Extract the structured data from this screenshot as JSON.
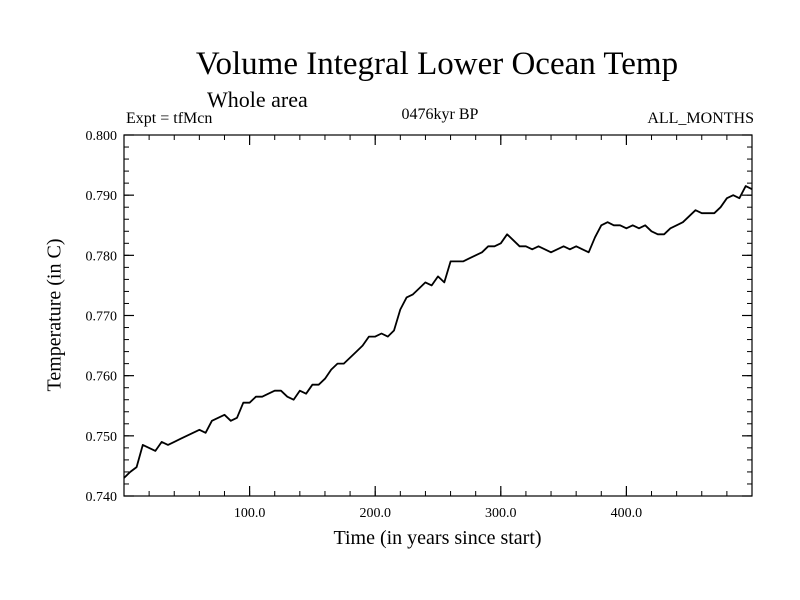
{
  "header": {
    "title": "Volume Integral Lower Ocean Temp",
    "subtitle": "Whole area",
    "expt": "Expt = tfMcn",
    "period": "0476kyr BP",
    "months": "ALL_MONTHS"
  },
  "chart_data": {
    "type": "line",
    "title": "Volume Integral Lower Ocean Temp",
    "xlabel": "Time (in years since start)",
    "ylabel": "Temperature (in C)",
    "xlim": [
      0,
      500
    ],
    "ylim": [
      0.74,
      0.8
    ],
    "x_ticks": [
      100,
      200,
      300,
      400
    ],
    "x_tick_labels": [
      "100.0",
      "200.0",
      "300.0",
      "400.0"
    ],
    "y_ticks": [
      0.74,
      0.75,
      0.76,
      0.77,
      0.78,
      0.79,
      0.8
    ],
    "y_tick_labels": [
      "0.740",
      "0.750",
      "0.760",
      "0.770",
      "0.780",
      "0.790",
      "0.800"
    ],
    "grid": false,
    "series": [
      {
        "color": "#000000",
        "x": [
          0,
          5,
          10,
          15,
          20,
          25,
          30,
          35,
          40,
          45,
          50,
          55,
          60,
          65,
          70,
          75,
          80,
          85,
          90,
          95,
          100,
          105,
          110,
          115,
          120,
          125,
          130,
          135,
          140,
          145,
          150,
          155,
          160,
          165,
          170,
          175,
          180,
          185,
          190,
          195,
          200,
          205,
          210,
          215,
          220,
          225,
          230,
          235,
          240,
          245,
          250,
          255,
          260,
          265,
          270,
          275,
          280,
          285,
          290,
          295,
          300,
          305,
          310,
          315,
          320,
          325,
          330,
          335,
          340,
          345,
          350,
          355,
          360,
          365,
          370,
          375,
          380,
          385,
          390,
          395,
          400,
          405,
          410,
          415,
          420,
          425,
          430,
          435,
          440,
          445,
          450,
          455,
          460,
          465,
          470,
          475,
          480,
          485,
          490,
          495,
          500
        ],
        "y": [
          0.743,
          0.744,
          0.7448,
          0.7485,
          0.748,
          0.7475,
          0.749,
          0.7485,
          0.749,
          0.7495,
          0.75,
          0.7505,
          0.751,
          0.7505,
          0.7525,
          0.753,
          0.7535,
          0.7525,
          0.753,
          0.7555,
          0.7555,
          0.7565,
          0.7565,
          0.757,
          0.7575,
          0.7575,
          0.7565,
          0.756,
          0.7575,
          0.757,
          0.7585,
          0.7585,
          0.7595,
          0.761,
          0.762,
          0.762,
          0.763,
          0.764,
          0.765,
          0.7665,
          0.7665,
          0.767,
          0.7665,
          0.7675,
          0.771,
          0.773,
          0.7735,
          0.7745,
          0.7755,
          0.775,
          0.7765,
          0.7755,
          0.779,
          0.779,
          0.779,
          0.7795,
          0.78,
          0.7805,
          0.7815,
          0.7815,
          0.782,
          0.7835,
          0.7825,
          0.7815,
          0.7815,
          0.781,
          0.7815,
          0.781,
          0.7805,
          0.781,
          0.7815,
          0.781,
          0.7815,
          0.781,
          0.7805,
          0.783,
          0.785,
          0.7855,
          0.785,
          0.785,
          0.7845,
          0.785,
          0.7845,
          0.785,
          0.784,
          0.7835,
          0.7835,
          0.7845,
          0.785,
          0.7855,
          0.7865,
          0.7875,
          0.787,
          0.787,
          0.787,
          0.788,
          0.7895,
          0.79,
          0.7895,
          0.7915,
          0.791
        ]
      }
    ]
  }
}
